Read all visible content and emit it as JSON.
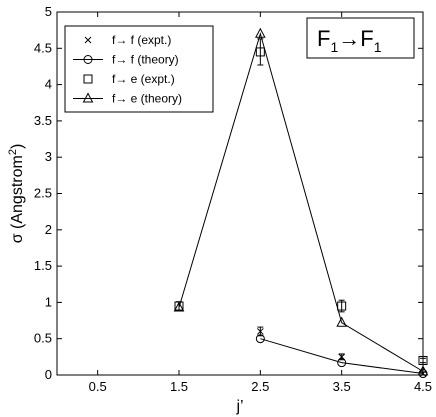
{
  "chart_data": {
    "type": "line",
    "xlabel": "j’",
    "ylabel": "σ (Angstrom",
    "ylabel_sup": "2",
    "ylabel_close": ")",
    "xlim": [
      0,
      4.5
    ],
    "ylim": [
      0,
      5
    ],
    "xticks": [
      0.5,
      1.5,
      2.5,
      3.5,
      4.5
    ],
    "xtick_labels": [
      "0.5",
      "1.5",
      "2.5",
      "3.5",
      "4.5"
    ],
    "yticks": [
      0,
      0.5,
      1,
      1.5,
      2,
      2.5,
      3,
      3.5,
      4,
      4.5,
      5
    ],
    "ytick_labels": [
      "0",
      "0.5",
      "1",
      "1.5",
      "2",
      "2.5",
      "3",
      "3.5",
      "4",
      "4.5",
      "5"
    ],
    "grid": false,
    "legend_position": "top-left",
    "annotation": {
      "left": "F",
      "left_sub": "1",
      "arrow": "→",
      "right": "F",
      "right_sub": "1"
    },
    "series": [
      {
        "name": "f→ f (expt.)",
        "marker": "x",
        "line": false,
        "x": [
          2.5,
          3.5,
          4.5
        ],
        "y": [
          0.6,
          0.25,
          0.02
        ],
        "err": [
          0.06,
          0.04,
          0.02
        ]
      },
      {
        "name": "f→ f (theory)",
        "marker": "circle",
        "line": true,
        "x": [
          2.5,
          3.5,
          4.5
        ],
        "y": [
          0.5,
          0.17,
          0.02
        ],
        "err": null
      },
      {
        "name": "f→ e (expt.)",
        "marker": "square",
        "line": false,
        "x": [
          1.5,
          2.5,
          3.5,
          4.5
        ],
        "y": [
          0.95,
          4.45,
          0.95,
          0.2
        ],
        "err": [
          0.06,
          0.18,
          0.08,
          0.03
        ]
      },
      {
        "name": "f→ e (theory)",
        "marker": "triangle",
        "line": true,
        "x": [
          1.5,
          2.5,
          3.5,
          4.5
        ],
        "y": [
          0.93,
          4.7,
          0.72,
          0.05
        ],
        "err": null
      }
    ]
  }
}
